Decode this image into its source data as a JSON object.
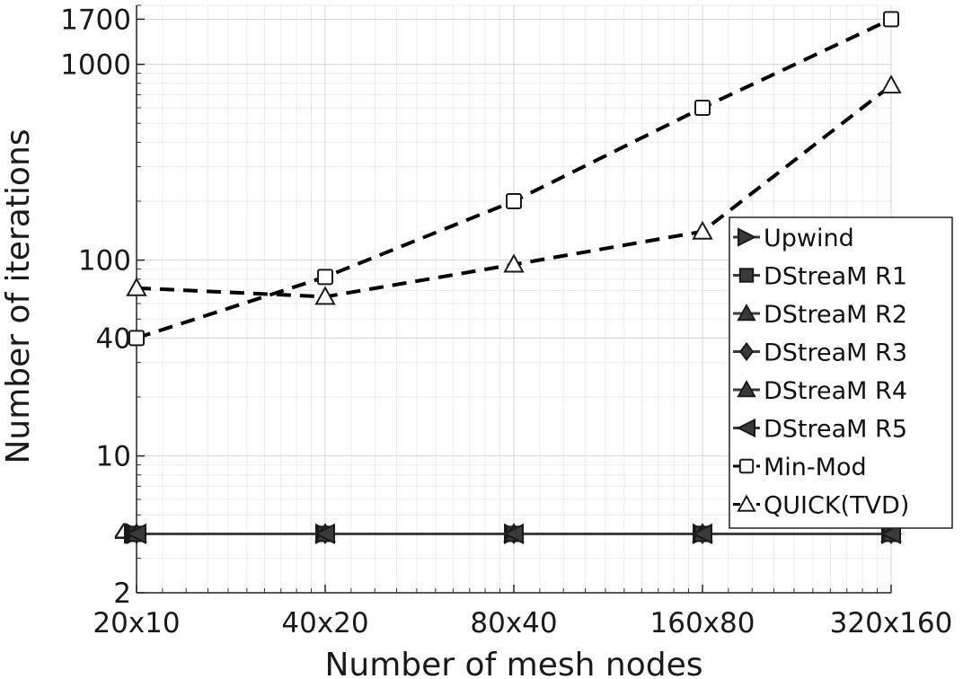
{
  "chart_data": {
    "type": "line",
    "title": "",
    "xlabel": "Number of mesh nodes",
    "ylabel": "Number of iterations",
    "x_scale": "log2",
    "y_scale": "log",
    "ylim": [
      2,
      2000
    ],
    "grid": true,
    "legend_position": "right",
    "categories": [
      "20x10",
      "40x20",
      "80x40",
      "160x80",
      "320x160"
    ],
    "yticks": [
      2,
      4,
      10,
      40,
      100,
      1000,
      1700
    ],
    "series": [
      {
        "name": "Upwind",
        "marker": "triangle-right",
        "line": "solid",
        "color": "#3a3a3a",
        "values": [
          4,
          4,
          4,
          4,
          4
        ]
      },
      {
        "name": "DStreaM R1",
        "marker": "square-filled",
        "line": "solid",
        "color": "#3a3a3a",
        "values": [
          4,
          4,
          4,
          4,
          4
        ]
      },
      {
        "name": "DStreaM R2",
        "marker": "triangle-up-filled",
        "line": "solid",
        "color": "#3a3a3a",
        "values": [
          4,
          4,
          4,
          4,
          4
        ]
      },
      {
        "name": "DStreaM R3",
        "marker": "diamond-filled",
        "line": "solid",
        "color": "#3a3a3a",
        "values": [
          4,
          4,
          4,
          4,
          4
        ]
      },
      {
        "name": "DStreaM R4",
        "marker": "triangle-up-filled",
        "line": "solid",
        "color": "#3a3a3a",
        "values": [
          4,
          4,
          4,
          4,
          4
        ]
      },
      {
        "name": "DStreaM R5",
        "marker": "triangle-left",
        "line": "solid",
        "color": "#3a3a3a",
        "values": [
          4,
          4,
          4,
          4,
          4
        ]
      },
      {
        "name": "Min-Mod",
        "marker": "square-open",
        "line": "dashed",
        "color": "#000000",
        "values": [
          40,
          82,
          200,
          600,
          1700
        ]
      },
      {
        "name": "QUICK(TVD)",
        "marker": "triangle-open",
        "line": "dashed",
        "color": "#000000",
        "values": [
          72,
          65,
          95,
          140,
          780
        ]
      }
    ]
  }
}
